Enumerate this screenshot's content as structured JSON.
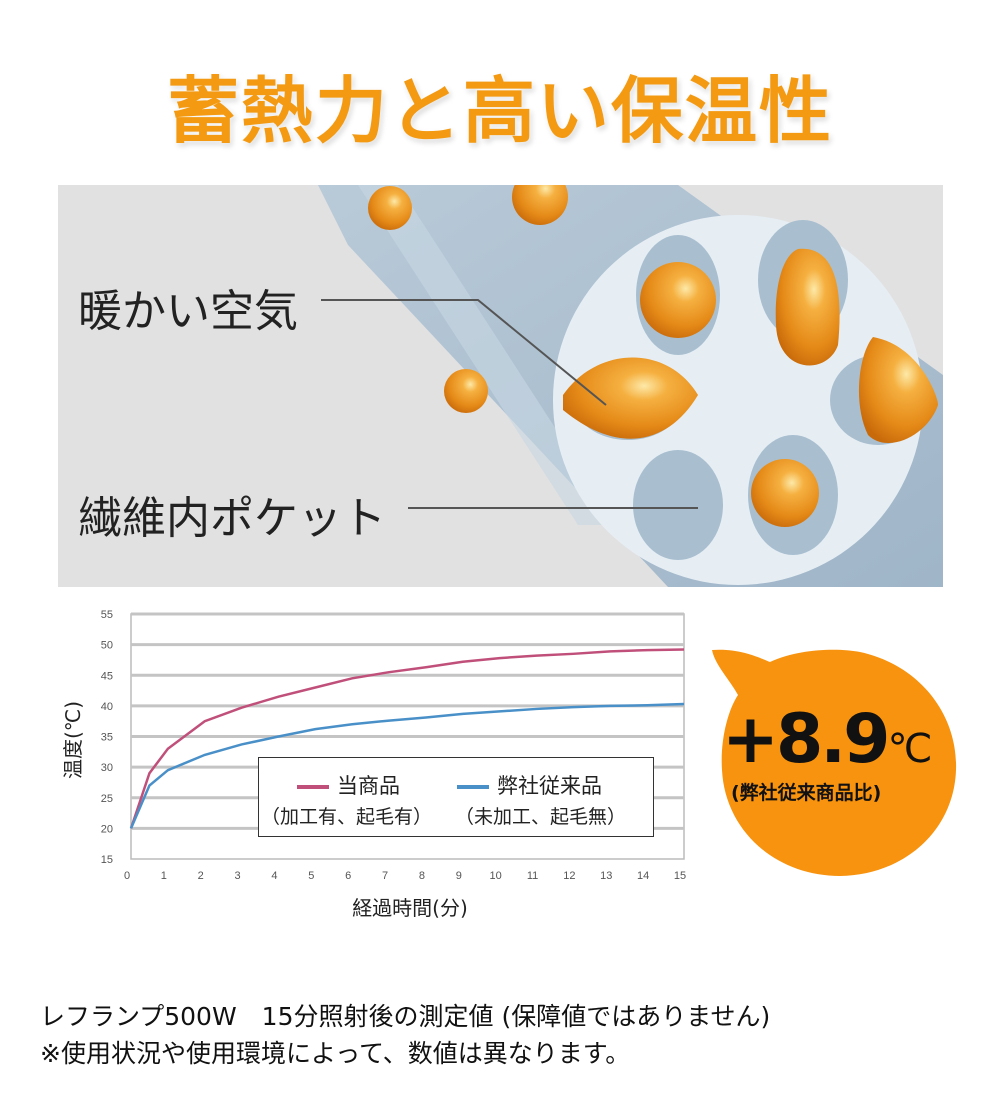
{
  "title": "蓄熱力と高い保温性",
  "illustration": {
    "label_warm_air": "暖かい空気",
    "label_fiber_pocket": "繊維内ポケット"
  },
  "badge": {
    "value": "+8.9",
    "unit": "℃",
    "caption": "(弊社従来商品比)",
    "color": "#f7930f"
  },
  "legend": {
    "series1_label": "当商品",
    "series1_sub": "（加工有、起毛有）",
    "series2_label": "弊社従来品",
    "series2_sub": "（未加工、起毛無）"
  },
  "notes": {
    "line1": "レフランプ500W　15分照射後の測定値 (保障値ではありません)",
    "line2": "※使用状況や使用環境によって、数値は異なります。"
  },
  "chart_data": {
    "type": "line",
    "title": "",
    "xlabel": "経過時間(分)",
    "ylabel": "温度(℃)",
    "x": [
      0,
      0.5,
      1,
      2,
      3,
      4,
      5,
      6,
      7,
      8,
      9,
      10,
      11,
      12,
      13,
      14,
      15
    ],
    "xticks": [
      0,
      1,
      2,
      3,
      4,
      5,
      6,
      7,
      8,
      9,
      10,
      11,
      12,
      13,
      14,
      15
    ],
    "yticks": [
      15,
      20,
      25,
      30,
      35,
      40,
      45,
      50,
      55
    ],
    "xlim": [
      0,
      15
    ],
    "ylim": [
      15,
      55
    ],
    "grid": "horizontal",
    "legend_position": "inside-lower-right",
    "series": [
      {
        "name": "当商品（加工有、起毛有）",
        "color": "#c0507a",
        "values": [
          20,
          29,
          33,
          37.5,
          39.7,
          41.5,
          43,
          44.5,
          45.5,
          46.3,
          47.2,
          47.8,
          48.2,
          48.5,
          48.9,
          49.1,
          49.2
        ]
      },
      {
        "name": "弊社従来品（未加工、起毛無）",
        "color": "#4a90c8",
        "values": [
          20,
          27,
          29.5,
          32,
          33.7,
          35,
          36.2,
          37,
          37.6,
          38.1,
          38.7,
          39.1,
          39.5,
          39.8,
          40,
          40.1,
          40.3
        ]
      }
    ]
  }
}
